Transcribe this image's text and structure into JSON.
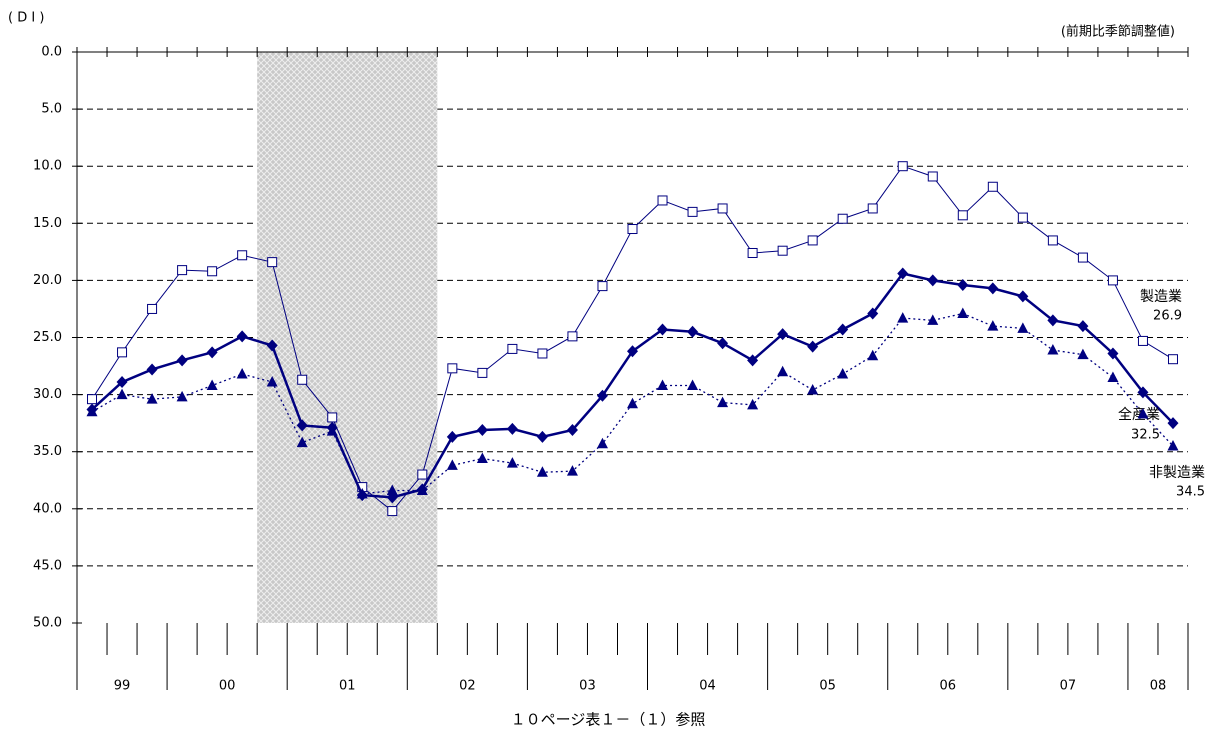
{
  "chart_data": {
    "type": "line",
    "y_label": "( D I )",
    "note": "(前期比季節調整値)",
    "footer": "１０ページ表１－（１）参照",
    "ylim": [
      0,
      50
    ],
    "y_inverted": true,
    "yticks": [
      {
        "value": 0,
        "label": "0.0"
      },
      {
        "value": 5,
        "label": "5.0"
      },
      {
        "value": 10,
        "label": "10.0"
      },
      {
        "value": 15,
        "label": "15.0"
      },
      {
        "value": 20,
        "label": "20.0"
      },
      {
        "value": 25,
        "label": "25.0"
      },
      {
        "value": 30,
        "label": "30.0"
      },
      {
        "value": 35,
        "label": "35.0"
      },
      {
        "value": 40,
        "label": "40.0"
      },
      {
        "value": 45,
        "label": "45.0"
      },
      {
        "value": 50,
        "label": "50.0"
      }
    ],
    "grid": true,
    "year_groups": [
      {
        "label": "99",
        "quarters": 3
      },
      {
        "label": "00",
        "quarters": 4
      },
      {
        "label": "01",
        "quarters": 4
      },
      {
        "label": "02",
        "quarters": 4
      },
      {
        "label": "03",
        "quarters": 4
      },
      {
        "label": "04",
        "quarters": 4
      },
      {
        "label": "05",
        "quarters": 4
      },
      {
        "label": "06",
        "quarters": 4
      },
      {
        "label": "07",
        "quarters": 4
      },
      {
        "label": "08",
        "quarters": 2
      }
    ],
    "shaded": {
      "from": 5.5,
      "to": 11.5,
      "color": "#c8c8c8"
    },
    "series": [
      {
        "name": "製造業",
        "end_label": "26.9",
        "color": "#000080",
        "marker": "square",
        "line_style": "solid",
        "line_width": 1,
        "values": [
          30.4,
          26.3,
          22.5,
          19.1,
          19.2,
          17.8,
          18.4,
          28.7,
          32.0,
          38.1,
          40.2,
          37.0,
          27.7,
          28.1,
          26.0,
          26.4,
          24.9,
          20.5,
          15.5,
          13.0,
          14.0,
          13.7,
          17.6,
          17.4,
          16.5,
          14.6,
          13.7,
          10.0,
          10.9,
          14.3,
          11.8,
          14.5,
          16.5,
          18.0,
          20.0,
          25.3,
          26.9
        ]
      },
      {
        "name": "全産業",
        "end_label": "32.5",
        "color": "#000080",
        "marker": "diamond",
        "line_style": "solid",
        "line_width": 2.5,
        "values": [
          31.3,
          28.9,
          27.8,
          27.0,
          26.3,
          24.9,
          25.7,
          32.7,
          32.9,
          38.8,
          39.0,
          38.3,
          33.7,
          33.1,
          33.0,
          33.7,
          33.1,
          30.1,
          26.2,
          24.3,
          24.5,
          25.5,
          27.0,
          24.7,
          25.8,
          24.3,
          22.9,
          19.4,
          20.0,
          20.4,
          20.7,
          21.4,
          23.5,
          24.0,
          26.4,
          29.8,
          32.5
        ]
      },
      {
        "name": "非製造業",
        "end_label": "34.5",
        "color": "#000080",
        "marker": "triangle",
        "line_style": "dotted",
        "line_width": 1.3,
        "values": [
          31.5,
          30.0,
          30.4,
          30.2,
          29.2,
          28.2,
          28.9,
          34.2,
          33.2,
          38.7,
          38.4,
          38.4,
          36.2,
          35.6,
          36.0,
          36.8,
          36.7,
          34.3,
          30.8,
          29.2,
          29.2,
          30.7,
          30.9,
          28.0,
          29.6,
          28.2,
          26.6,
          23.3,
          23.5,
          22.9,
          24.0,
          24.2,
          26.1,
          26.5,
          28.5,
          31.7,
          34.5
        ]
      }
    ]
  }
}
